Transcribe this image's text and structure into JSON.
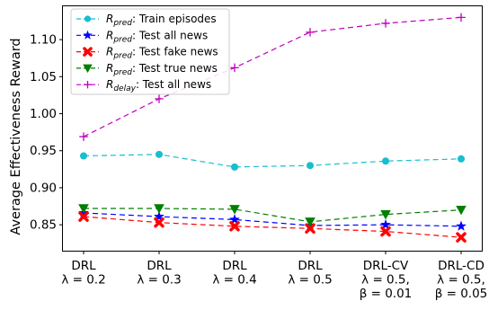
{
  "chart_data": {
    "type": "line",
    "ylabel": "Average Effectiveness Reward",
    "xlabel": "",
    "ylim": [
      0.815,
      1.145
    ],
    "yticks": [
      "0.85",
      "0.90",
      "0.95",
      "1.00",
      "1.05",
      "1.10"
    ],
    "grid": false,
    "legend_position": "top-left",
    "categories": [
      {
        "lines": [
          "DRL",
          "λ = 0.2"
        ]
      },
      {
        "lines": [
          "DRL",
          "λ = 0.3"
        ]
      },
      {
        "lines": [
          "DRL",
          "λ = 0.4"
        ]
      },
      {
        "lines": [
          "DRL",
          "λ = 0.5"
        ]
      },
      {
        "lines": [
          "DRL-CV",
          "λ = 0.5,",
          "β = 0.01"
        ]
      },
      {
        "lines": [
          "DRL-CD",
          "λ = 0.5,",
          "β = 0.05"
        ]
      }
    ],
    "series": [
      {
        "base": "R",
        "sub": "pred",
        "suffix": ": Train episodes",
        "color": "#17becf",
        "marker": "circle",
        "dash": "6,4",
        "values": [
          0.943,
          0.945,
          0.928,
          0.93,
          0.936,
          0.939
        ]
      },
      {
        "base": "R",
        "sub": "pred",
        "suffix": ": Test all news",
        "color": "#0000ff",
        "marker": "star",
        "dash": "6,4",
        "values": [
          0.866,
          0.861,
          0.857,
          0.849,
          0.85,
          0.848
        ]
      },
      {
        "base": "R",
        "sub": "pred",
        "suffix": ": Test fake news",
        "color": "#ff0000",
        "marker": "x",
        "dash": "6,4",
        "values": [
          0.861,
          0.853,
          0.848,
          0.845,
          0.841,
          0.833
        ]
      },
      {
        "base": "R",
        "sub": "pred",
        "suffix": ": Test true news",
        "color": "#007f00",
        "marker": "triangle-down",
        "dash": "6,4",
        "values": [
          0.872,
          0.872,
          0.871,
          0.854,
          0.864,
          0.87
        ]
      },
      {
        "base": "R",
        "sub": "delay",
        "suffix": ": Test all news",
        "color": "#bf00bf",
        "marker": "plus",
        "dash": "6,4",
        "values": [
          0.969,
          1.02,
          1.062,
          1.11,
          1.122,
          1.13
        ]
      }
    ]
  }
}
